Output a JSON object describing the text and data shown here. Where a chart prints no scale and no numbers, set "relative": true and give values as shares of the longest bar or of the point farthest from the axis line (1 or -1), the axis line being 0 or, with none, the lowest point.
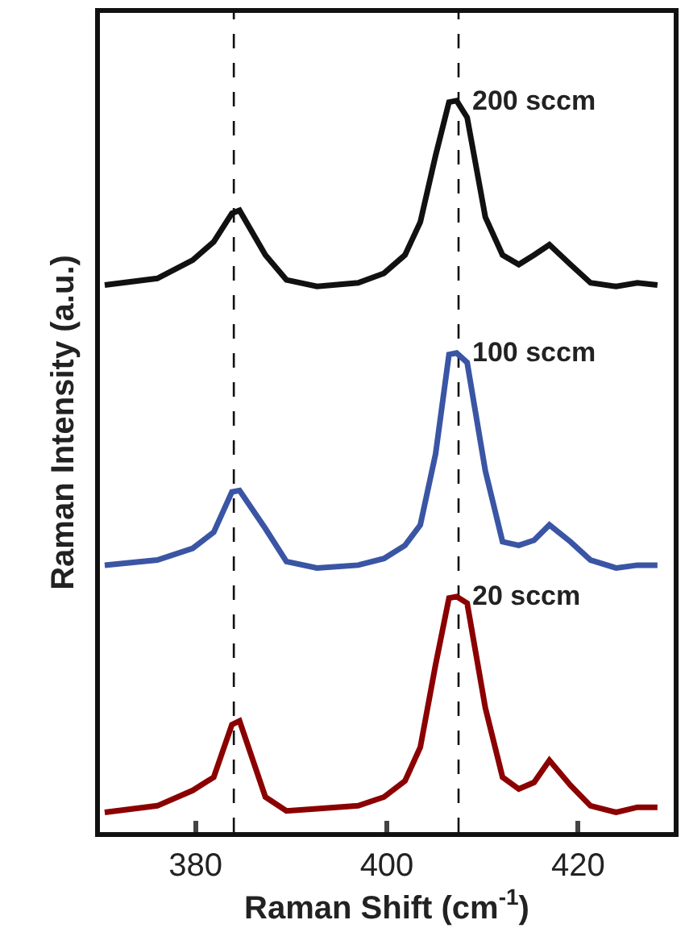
{
  "chart_data": {
    "type": "line",
    "relative": true,
    "xlabel": "Raman Shift (cm$^{-1}$)",
    "ylabel": "Raman Intensity (a.u.)",
    "x": [
      370.5,
      376,
      379.7,
      381.9,
      383.8,
      384.6,
      387.3,
      389.5,
      392.7,
      397,
      399.7,
      401.9,
      403.5,
      405.1,
      406.5,
      407.3,
      408.4,
      410.3,
      412.1,
      413.8,
      415.4,
      417,
      419.2,
      421.3,
      424,
      426.2,
      428.3
    ],
    "series": [
      {
        "name": "200 sccm",
        "color": "#111111",
        "values": [
          0.748,
          0.757,
          0.782,
          0.807,
          0.846,
          0.85,
          0.789,
          0.755,
          0.746,
          0.751,
          0.764,
          0.789,
          0.834,
          0.925,
          0.998,
          1.0,
          0.977,
          0.841,
          0.789,
          0.776,
          0.789,
          0.803,
          0.776,
          0.751,
          0.746,
          0.751,
          0.748
        ]
      },
      {
        "name": "100 sccm",
        "color": "#3a55a4",
        "values": [
          0.365,
          0.372,
          0.388,
          0.41,
          0.465,
          0.467,
          0.415,
          0.37,
          0.361,
          0.365,
          0.374,
          0.392,
          0.42,
          0.517,
          0.653,
          0.655,
          0.642,
          0.494,
          0.397,
          0.392,
          0.399,
          0.42,
          0.397,
          0.372,
          0.361,
          0.365,
          0.365
        ]
      },
      {
        "name": "20 sccm",
        "color": "#8b0000",
        "values": [
          0.027,
          0.036,
          0.057,
          0.075,
          0.147,
          0.152,
          0.048,
          0.029,
          0.032,
          0.036,
          0.048,
          0.07,
          0.116,
          0.229,
          0.32,
          0.322,
          0.313,
          0.17,
          0.075,
          0.059,
          0.068,
          0.098,
          0.064,
          0.036,
          0.027,
          0.034,
          0.034
        ]
      }
    ],
    "xlim": [
      370,
      430
    ],
    "xticks": [
      380,
      400,
      420
    ],
    "ref_lines": [
      {
        "axis": "x",
        "value": 384,
        "color": "#111111",
        "line_style": "dashed"
      },
      {
        "axis": "x",
        "value": 407.5,
        "color": "#111111",
        "line_style": "dashed"
      }
    ]
  }
}
